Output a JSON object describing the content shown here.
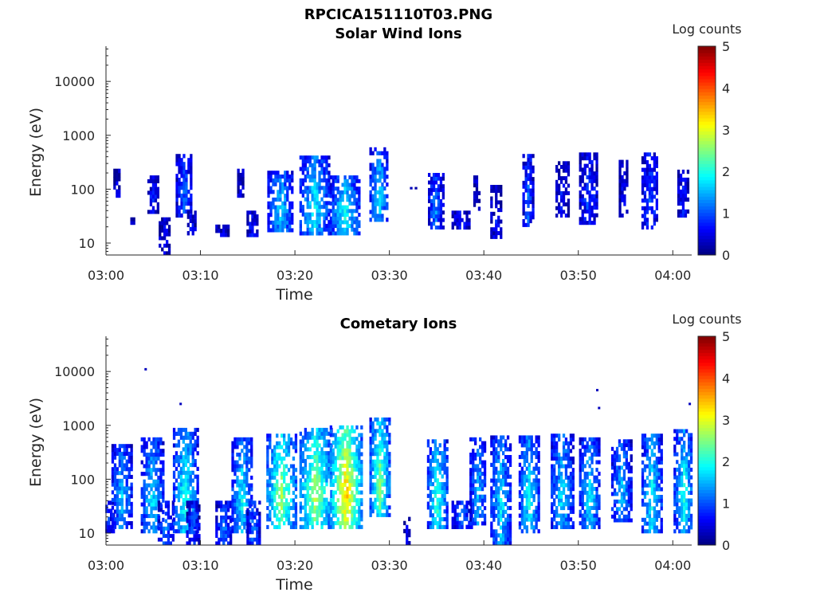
{
  "figure": {
    "title": "RPCICA151110T03.PNG"
  },
  "chart_data": [
    {
      "type": "heatmap",
      "title": "Solar Wind Ions",
      "xlabel": "Time",
      "ylabel": "Energy (eV)",
      "x_ticks": [
        "03:00",
        "03:10",
        "03:20",
        "03:30",
        "03:40",
        "03:50",
        "04:00"
      ],
      "x_range_minutes": [
        0,
        62
      ],
      "y_scale": "log",
      "y_ticks": [
        10,
        100,
        1000,
        10000
      ],
      "y_range": [
        6,
        45000
      ],
      "colorbar": {
        "label": "Log counts",
        "range": [
          0,
          5
        ],
        "ticks": [
          0,
          1,
          2,
          3,
          4,
          5
        ],
        "colormap": "jet"
      },
      "bursts": [
        {
          "t": 1.2,
          "elo": 70,
          "ehi": 240,
          "peak": 0.6,
          "w": 0.3
        },
        {
          "t": 2.9,
          "elo": 22,
          "ehi": 30,
          "peak": 0.4,
          "w": 0.2
        },
        {
          "t": 5.0,
          "elo": 35,
          "ehi": 180,
          "peak": 0.8,
          "w": 0.5
        },
        {
          "t": 6.2,
          "elo": 6,
          "ehi": 30,
          "peak": 0.6,
          "w": 0.5
        },
        {
          "t": 8.3,
          "elo": 30,
          "ehi": 450,
          "peak": 1.1,
          "w": 0.8
        },
        {
          "t": 9.1,
          "elo": 14,
          "ehi": 40,
          "peak": 0.6,
          "w": 0.4
        },
        {
          "t": 12.3,
          "elo": 13,
          "ehi": 22,
          "peak": 0.5,
          "w": 0.6
        },
        {
          "t": 14.3,
          "elo": 70,
          "ehi": 240,
          "peak": 0.5,
          "w": 0.3
        },
        {
          "t": 15.5,
          "elo": 13,
          "ehi": 40,
          "peak": 0.7,
          "w": 0.5
        },
        {
          "t": 18.5,
          "elo": 16,
          "ehi": 220,
          "peak": 1.7,
          "w": 1.3
        },
        {
          "t": 22.1,
          "elo": 14,
          "ehi": 420,
          "peak": 1.9,
          "w": 1.5
        },
        {
          "t": 25.3,
          "elo": 14,
          "ehi": 180,
          "peak": 2.0,
          "w": 1.5
        },
        {
          "t": 28.9,
          "elo": 25,
          "ehi": 600,
          "peak": 1.8,
          "w": 0.9
        },
        {
          "t": 32.5,
          "elo": 100,
          "ehi": 110,
          "peak": 0.5,
          "w": 0.2
        },
        {
          "t": 34.9,
          "elo": 18,
          "ehi": 200,
          "peak": 1.3,
          "w": 0.7
        },
        {
          "t": 37.6,
          "elo": 18,
          "ehi": 40,
          "peak": 0.8,
          "w": 0.9
        },
        {
          "t": 39.3,
          "elo": 40,
          "ehi": 180,
          "peak": 0.5,
          "w": 0.3
        },
        {
          "t": 41.3,
          "elo": 12,
          "ehi": 120,
          "peak": 0.6,
          "w": 0.5
        },
        {
          "t": 44.7,
          "elo": 20,
          "ehi": 450,
          "peak": 1.1,
          "w": 0.5
        },
        {
          "t": 48.3,
          "elo": 30,
          "ehi": 330,
          "peak": 0.7,
          "w": 0.6
        },
        {
          "t": 51.1,
          "elo": 22,
          "ehi": 480,
          "peak": 0.9,
          "w": 0.9
        },
        {
          "t": 54.8,
          "elo": 30,
          "ehi": 350,
          "peak": 0.6,
          "w": 0.4
        },
        {
          "t": 57.6,
          "elo": 18,
          "ehi": 480,
          "peak": 1.0,
          "w": 0.8
        },
        {
          "t": 61.1,
          "elo": 30,
          "ehi": 230,
          "peak": 0.7,
          "w": 0.5
        }
      ],
      "points": []
    },
    {
      "type": "heatmap",
      "title": "Cometary Ions",
      "xlabel": "Time",
      "ylabel": "Energy (eV)",
      "x_ticks": [
        "03:00",
        "03:10",
        "03:20",
        "03:30",
        "03:40",
        "03:50",
        "04:00"
      ],
      "x_range_minutes": [
        0,
        62
      ],
      "y_scale": "log",
      "y_ticks": [
        10,
        100,
        1000,
        10000
      ],
      "y_range": [
        6,
        45000
      ],
      "colorbar": {
        "label": "Log counts",
        "range": [
          0,
          5
        ],
        "ticks": [
          0,
          1,
          2,
          3,
          4,
          5
        ],
        "colormap": "jet"
      },
      "bursts": [
        {
          "t": 0.3,
          "elo": 10,
          "ehi": 40,
          "peak": 0.9,
          "w": 0.5
        },
        {
          "t": 1.7,
          "elo": 12,
          "ehi": 450,
          "peak": 1.6,
          "w": 1.0
        },
        {
          "t": 4.9,
          "elo": 10,
          "ehi": 600,
          "peak": 1.8,
          "w": 1.1
        },
        {
          "t": 6.3,
          "elo": 6,
          "ehi": 40,
          "peak": 1.3,
          "w": 0.7
        },
        {
          "t": 8.4,
          "elo": 10,
          "ehi": 900,
          "peak": 2.1,
          "w": 1.2
        },
        {
          "t": 9.2,
          "elo": 6,
          "ehi": 40,
          "peak": 1.1,
          "w": 0.6
        },
        {
          "t": 12.5,
          "elo": 6,
          "ehi": 40,
          "peak": 1.2,
          "w": 0.8
        },
        {
          "t": 14.4,
          "elo": 10,
          "ehi": 600,
          "peak": 1.9,
          "w": 1.0
        },
        {
          "t": 15.6,
          "elo": 6,
          "ehi": 40,
          "peak": 1.3,
          "w": 0.6
        },
        {
          "t": 18.6,
          "elo": 12,
          "ehi": 700,
          "peak": 2.7,
          "w": 1.5
        },
        {
          "t": 22.2,
          "elo": 12,
          "ehi": 900,
          "peak": 2.8,
          "w": 1.6
        },
        {
          "t": 25.4,
          "elo": 12,
          "ehi": 1000,
          "peak": 3.5,
          "w": 1.6
        },
        {
          "t": 29.0,
          "elo": 20,
          "ehi": 1400,
          "peak": 2.6,
          "w": 1.0
        },
        {
          "t": 31.8,
          "elo": 6,
          "ehi": 20,
          "peak": 0.6,
          "w": 0.2
        },
        {
          "t": 35.1,
          "elo": 12,
          "ehi": 550,
          "peak": 2.2,
          "w": 1.0
        },
        {
          "t": 37.7,
          "elo": 12,
          "ehi": 40,
          "peak": 1.2,
          "w": 1.0
        },
        {
          "t": 39.4,
          "elo": 14,
          "ehi": 600,
          "peak": 1.6,
          "w": 0.8
        },
        {
          "t": 41.8,
          "elo": 6,
          "ehi": 650,
          "peak": 1.8,
          "w": 1.0
        },
        {
          "t": 44.8,
          "elo": 10,
          "ehi": 650,
          "peak": 2.0,
          "w": 1.0
        },
        {
          "t": 48.3,
          "elo": 12,
          "ehi": 700,
          "peak": 1.8,
          "w": 1.1
        },
        {
          "t": 51.2,
          "elo": 12,
          "ehi": 600,
          "peak": 1.8,
          "w": 1.0
        },
        {
          "t": 54.6,
          "elo": 16,
          "ehi": 550,
          "peak": 1.6,
          "w": 1.0
        },
        {
          "t": 57.8,
          "elo": 10,
          "ehi": 700,
          "peak": 2.0,
          "w": 1.0
        },
        {
          "t": 61.2,
          "elo": 10,
          "ehi": 850,
          "peak": 2.0,
          "w": 1.0
        }
      ],
      "points": [
        {
          "t": 4.2,
          "e": 11000,
          "v": 0.3
        },
        {
          "t": 7.9,
          "e": 2500,
          "v": 0.3
        },
        {
          "t": 52.0,
          "e": 4500,
          "v": 0.3
        },
        {
          "t": 52.2,
          "e": 2100,
          "v": 0.3
        },
        {
          "t": 61.8,
          "e": 2500,
          "v": 0.3
        }
      ]
    }
  ]
}
